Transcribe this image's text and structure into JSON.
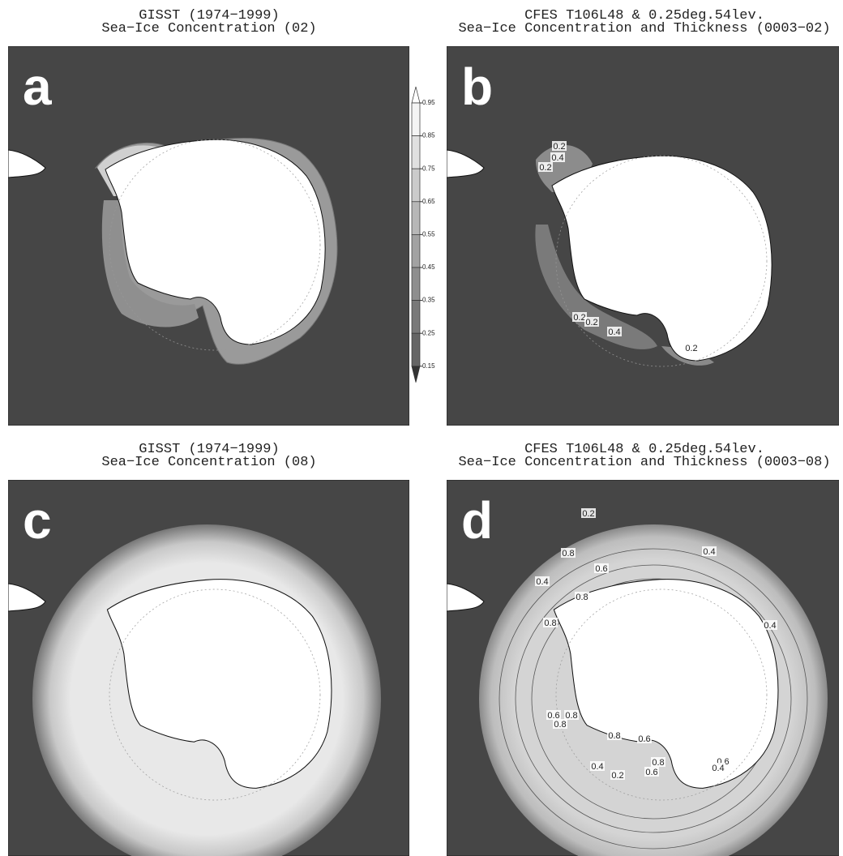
{
  "panels": [
    {
      "letter": "a",
      "title": [
        "GISST (1974−1999)",
        "Sea−Ice Concentration (02)"
      ],
      "contour_labels": []
    },
    {
      "letter": "b",
      "title": [
        "CFES T106L48 & 0.25deg.54lev.",
        "Sea−Ice Concentration and Thickness (0003−02)"
      ],
      "contour_labels": [
        "0.2",
        "0.4",
        "0.2",
        "0.2",
        "0.2",
        "0.4",
        "0.2"
      ]
    },
    {
      "letter": "c",
      "title": [
        "GISST (1974−1999)",
        "Sea−Ice Concentration (08)"
      ],
      "contour_labels": []
    },
    {
      "letter": "d",
      "title": [
        "CFES T106L48 & 0.25deg.54lev.",
        "Sea−Ice Concentration and Thickness (0003−08)"
      ],
      "contour_labels": [
        "0.2",
        "0.4",
        "0.8",
        "0.6",
        "0.4",
        "0.8",
        "0.8",
        "0.4",
        "0.6",
        "0.8",
        "0.8",
        "0.8",
        "0.6",
        "0.8",
        "0.6",
        "0.4",
        "0.4",
        "0.2",
        "0.6"
      ]
    }
  ],
  "colorbar": {
    "ticks": [
      "0.95",
      "0.85",
      "0.75",
      "0.65",
      "0.55",
      "0.45",
      "0.35",
      "0.25",
      "0.15"
    ]
  }
}
